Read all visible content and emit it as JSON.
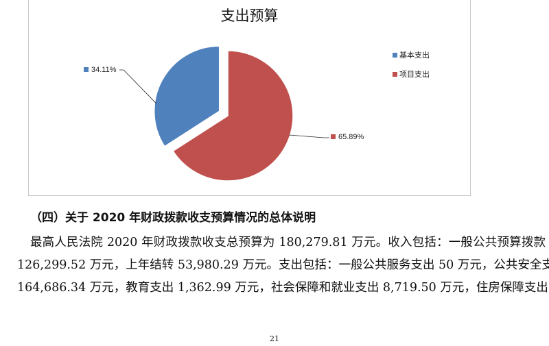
{
  "chart_data": {
    "type": "pie",
    "title": "支出预算",
    "categories": [
      "基本支出",
      "项目支出"
    ],
    "values": [
      34.11,
      65.89
    ],
    "data_labels": [
      "34.11%",
      "65.89%"
    ],
    "colors": [
      "#4f81bd",
      "#c0504d"
    ],
    "exploded": "基本支出",
    "legend_position": "right"
  },
  "section": {
    "heading": "（四）关于 2020 年财政拨款收支预算情况的总体说明",
    "lines": [
      "最高人民法院 2020 年财政拨款收支总预算为 180,279.81 万元。收入包括：一般公共预算拨款",
      "126,299.52 万元，上年结转 53,980.29 万元。支出包括：一般公共服务支出 50 万元，公共安全支出",
      "164,686.34 万元，教育支出 1,362.99 万元，社会保障和就业支出 8,719.50 万元，住房保障支出"
    ]
  },
  "page_number": "21"
}
